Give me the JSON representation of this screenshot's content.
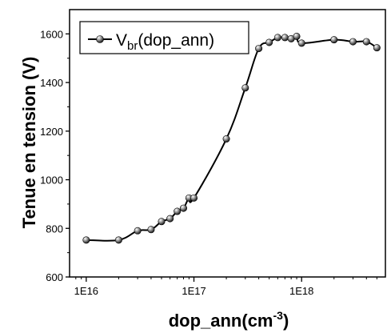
{
  "chart_data": {
    "type": "line",
    "xscale": "log",
    "xlim": [
      7000000000000000.0,
      6e+18
    ],
    "ylim": [
      600,
      1700
    ],
    "xticks": [
      1e+16,
      1e+17,
      1e+18
    ],
    "xtick_labels": [
      "1E16",
      "1E17",
      "1E18"
    ],
    "yticks": [
      600,
      800,
      1000,
      1200,
      1400,
      1600
    ],
    "ytick_labels": [
      "600",
      "800",
      "1000",
      "1200",
      "1400",
      "1600"
    ],
    "xlabel": {
      "base": "dop_ann(cm",
      "sup": "-3",
      "close": ")"
    },
    "ylabel": "Tenue en tension (V)",
    "legend": {
      "prefix": "V",
      "sub": "br",
      "suffix": "(dop_ann)",
      "position": "top-left"
    },
    "grid": false,
    "series": [
      {
        "name": "Vbr(dop_ann)",
        "color": "#000000",
        "marker": "sphere",
        "x": [
          1e+16,
          2e+16,
          3e+16,
          4e+16,
          5e+16,
          6e+16,
          7e+16,
          8e+16,
          9e+16,
          1e+17,
          2e+17,
          3e+17,
          4e+17,
          5e+17,
          6e+17,
          7e+17,
          8e+17,
          9e+17,
          1e+18,
          2e+18,
          3e+18,
          4e+18,
          5e+18
        ],
        "y": [
          752,
          752,
          790,
          795,
          828,
          840,
          870,
          883,
          925,
          925,
          1168,
          1378,
          1540,
          1565,
          1585,
          1585,
          1580,
          1590,
          1562,
          1576,
          1568,
          1568,
          1543
        ]
      }
    ]
  }
}
